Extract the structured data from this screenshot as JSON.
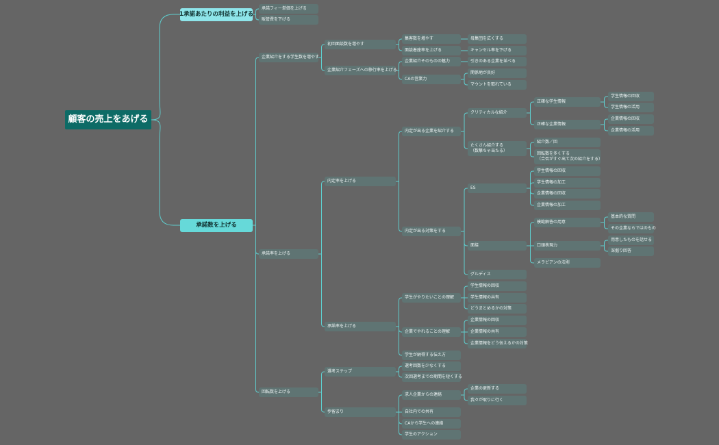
{
  "colors": {
    "background": "#656565",
    "root": "#0d6b66",
    "branch": "#66d9d9",
    "node": "#5f7473",
    "connector": "#5ecfcf"
  },
  "root": {
    "label": "顧客の売上をあげる",
    "children": [
      {
        "label": "1承諾あたりの利益を上げる",
        "children": [
          {
            "label": "承諾フィー単価を上げる"
          },
          {
            "label": "販管費を下げる"
          }
        ]
      },
      {
        "label": "承諾数を上げる",
        "children": [
          {
            "label": "企業紹介をする学生数を増やす",
            "children": [
              {
                "label": "初回面談数を増やす",
                "children": [
                  {
                    "label": "集客数を増やす",
                    "children": [
                      {
                        "label": "母集団を広くする"
                      }
                    ]
                  },
                  {
                    "label": "面談着座率を上げる",
                    "children": [
                      {
                        "label": "キャンセル率を下げる"
                      }
                    ]
                  }
                ]
              },
              {
                "label": "企業紹介フェーズへの移行率を上げる",
                "children": [
                  {
                    "label": "企業紹介そのものの魅力",
                    "children": [
                      {
                        "label": "引きのある企業を並べる"
                      }
                    ]
                  },
                  {
                    "label": "CAの営業力",
                    "children": [
                      {
                        "label": "関係地が良好"
                      },
                      {
                        "label": "マウントを取れている"
                      }
                    ]
                  }
                ]
              }
            ]
          },
          {
            "label": "承諾率を上げる",
            "children": [
              {
                "label": "内定率を上げる",
                "children": [
                  {
                    "label": "内定が出る企業を紹介する",
                    "children": [
                      {
                        "label": "クリティカルな紹介",
                        "children": [
                          {
                            "label": "正確な学生情報",
                            "children": [
                              {
                                "label": "学生情報の回収"
                              },
                              {
                                "label": "学生情報の活用"
                              }
                            ]
                          },
                          {
                            "label": "正確な企業情報",
                            "children": [
                              {
                                "label": "企業情報の回収"
                              },
                              {
                                "label": "企業情報の活用"
                              }
                            ]
                          }
                        ]
                      },
                      {
                        "label": "たくさん紹介する\n（数撃ちゃ当たる）",
                        "children": [
                          {
                            "label": "紹介数／回"
                          },
                          {
                            "label": "回転数を多くする\n（合否がすぐ出て次の紹介をする）"
                          }
                        ]
                      }
                    ]
                  },
                  {
                    "label": "内定が出る対策をする",
                    "children": [
                      {
                        "label": "ES",
                        "children": [
                          {
                            "label": "学生情報の回収"
                          },
                          {
                            "label": "学生情報の加工"
                          },
                          {
                            "label": "企業情報の回収"
                          },
                          {
                            "label": "企業情報の加工"
                          }
                        ]
                      },
                      {
                        "label": "面接",
                        "children": [
                          {
                            "label": "模範解答の用意",
                            "children": [
                              {
                                "label": "基本的な質問"
                              },
                              {
                                "label": "その企業ならではのもの"
                              }
                            ]
                          },
                          {
                            "label": "口頭表現力",
                            "children": [
                              {
                                "label": "用意したものを話せる"
                              },
                              {
                                "label": "深掘り回答"
                              }
                            ]
                          },
                          {
                            "label": "メラビアンの法則"
                          }
                        ]
                      },
                      {
                        "label": "グルディス"
                      }
                    ]
                  }
                ]
              },
              {
                "label": "承諾率を上げる",
                "children": [
                  {
                    "label": "学生がやりたいことの理解",
                    "children": [
                      {
                        "label": "学生情報の回収"
                      },
                      {
                        "label": "学生情報の共有"
                      },
                      {
                        "label": "どうまとめるかの対策"
                      }
                    ]
                  },
                  {
                    "label": "企業でやれることの理解",
                    "children": [
                      {
                        "label": "企業情報の回収"
                      },
                      {
                        "label": "企業情報の共有"
                      },
                      {
                        "label": "企業情報をどう伝えるかの対策"
                      }
                    ]
                  },
                  {
                    "label": "学生が納得する伝え方"
                  }
                ]
              }
            ]
          },
          {
            "label": "回転数を上げる",
            "children": [
              {
                "label": "選考ステップ",
                "children": [
                  {
                    "label": "選考回数を少なくする"
                  },
                  {
                    "label": "次回選考までの期間を短くする"
                  }
                ]
              },
              {
                "label": "歩留まり",
                "children": [
                  {
                    "label": "求人企業からの連絡",
                    "children": [
                      {
                        "label": "企業の更新する"
                      },
                      {
                        "label": "我々が取りに行く"
                      }
                    ]
                  },
                  {
                    "label": "自社内での共有"
                  },
                  {
                    "label": "CAから学生への連絡"
                  },
                  {
                    "label": "学生のアクション"
                  }
                ]
              }
            ]
          }
        ]
      }
    ]
  }
}
